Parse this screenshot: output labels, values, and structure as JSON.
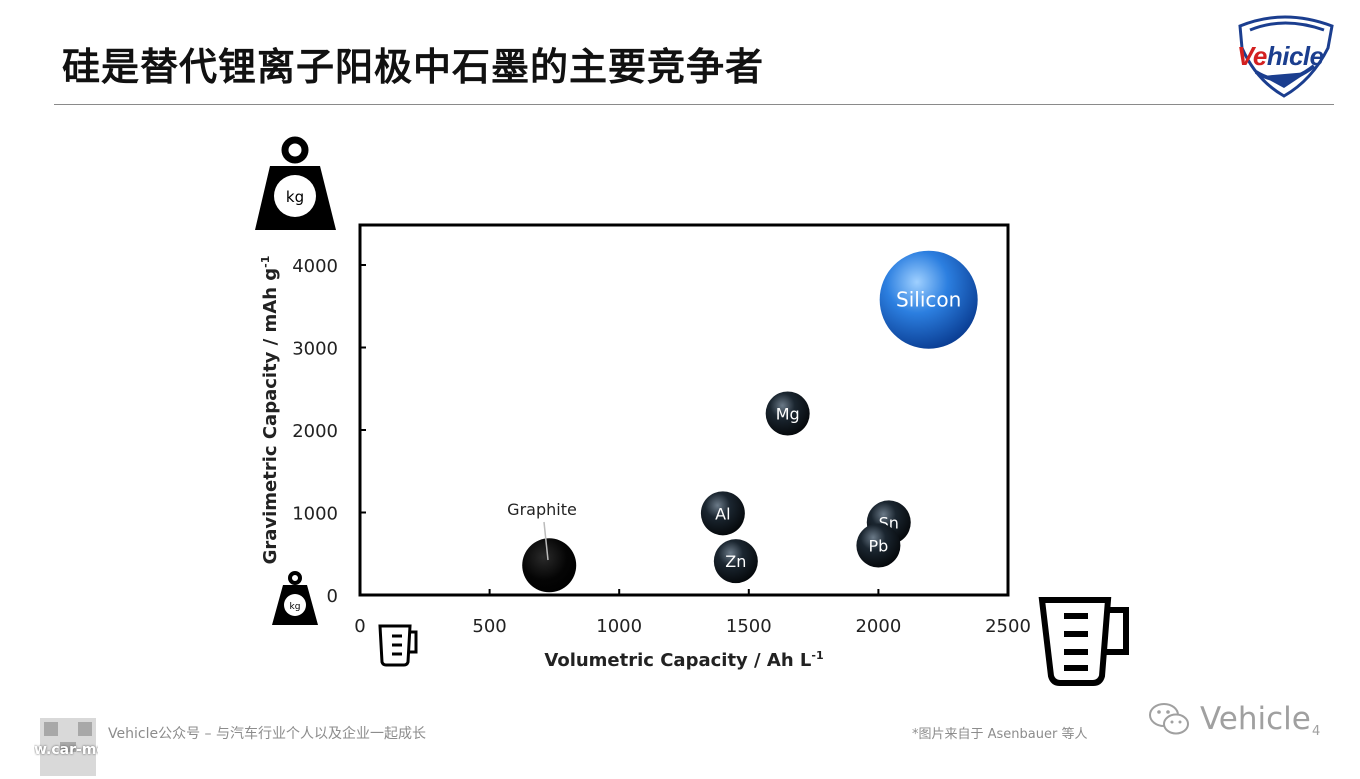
{
  "slide": {
    "title": "硅是替代锂离子阳极中石墨的主要竞争者"
  },
  "logo": {
    "text_red": "Ve",
    "text_blue": "hicle"
  },
  "footer": {
    "left_text": "Vehicle公众号 – 与汽车行业个人以及企业一起成长",
    "right_text": "*图片来自于 Asenbauer 等人",
    "brand": "Vehicle",
    "page_number": "4",
    "watermark_text": "w.car-me"
  },
  "icons": {
    "top_weight": "kg",
    "small_weight": "kg"
  },
  "colors": {
    "silicon": "#1f6fd6",
    "element_dark": "#141c24",
    "graphite": "#050505",
    "axis": "#000000"
  },
  "chart_data": {
    "type": "scatter",
    "xlabel": "Volumetric Capacity / Ah L",
    "xlabel_sup": "-1",
    "ylabel": "Gravimetric Capacity / mAh g",
    "ylabel_sup": "-1",
    "xlim": [
      0,
      2500
    ],
    "ylim": [
      0,
      4000
    ],
    "xticks": [
      0,
      500,
      1000,
      1500,
      2000,
      2500
    ],
    "yticks": [
      0,
      1000,
      2000,
      3000,
      4000
    ],
    "xtick_labels": [
      "0",
      "500",
      "1000",
      "1500",
      "2000",
      "2500"
    ],
    "ytick_labels": [
      "0",
      "1000",
      "2000",
      "3000",
      "4000"
    ],
    "grid": false,
    "points": [
      {
        "label": "Silicon",
        "x": 2194,
        "y": 3579,
        "color": "#1f6fd6"
      },
      {
        "label": "Mg",
        "x": 1650,
        "y": 2200,
        "color": "#141c24"
      },
      {
        "label": "Al",
        "x": 1400,
        "y": 990,
        "color": "#141c24"
      },
      {
        "label": "Sn",
        "x": 2040,
        "y": 880,
        "color": "#141c24"
      },
      {
        "label": "Pb",
        "x": 2000,
        "y": 600,
        "color": "#141c24"
      },
      {
        "label": "Zn",
        "x": 1450,
        "y": 410,
        "color": "#141c24"
      },
      {
        "label": "",
        "x": 730,
        "y": 360,
        "color": "#050505"
      }
    ],
    "annotations": [
      {
        "text": "Graphite"
      }
    ]
  }
}
